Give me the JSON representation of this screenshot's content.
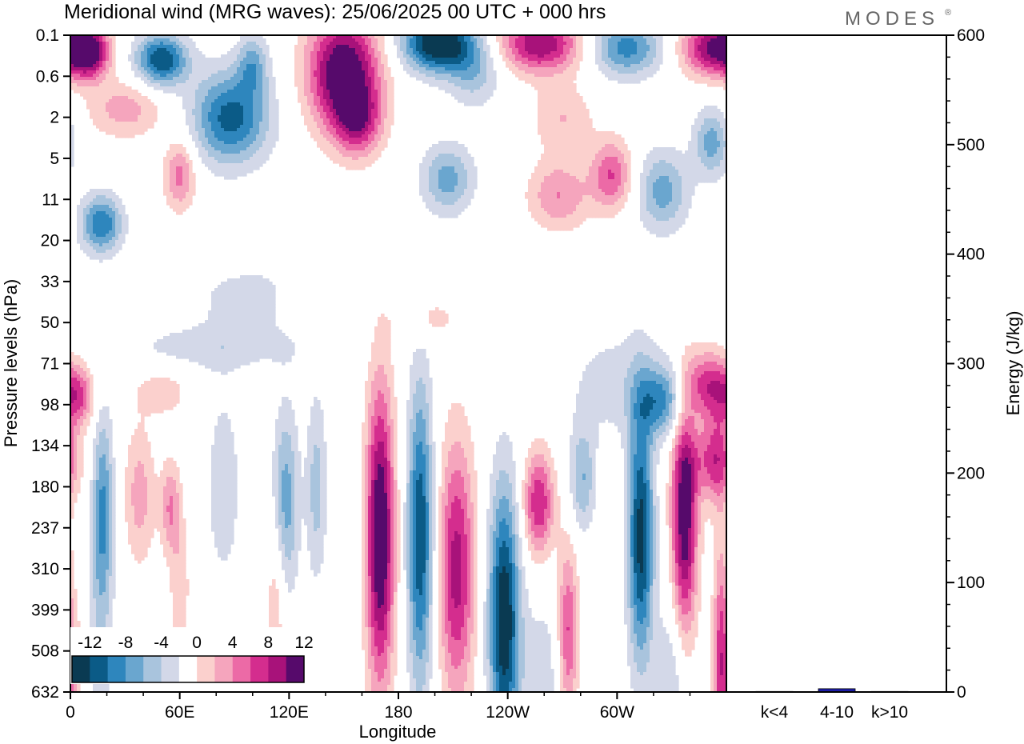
{
  "title": "Meridional wind (MRG waves):  25/06/2025  00 UTC  + 000 hrs",
  "logo": "MODES",
  "logo_mark": "®",
  "colors": {
    "neg": [
      "#0a3a52",
      "#0b5b87",
      "#2e86bd",
      "#6aa6cf",
      "#a9c4dd",
      "#d3d8e8"
    ],
    "pos": [
      "#fbd0cd",
      "#f5a5bd",
      "#ec6aa6",
      "#d42d8e",
      "#a8127a",
      "#560a6b"
    ],
    "zero": "#ffffff",
    "bar": "#1c1ca8"
  },
  "chart_data": [
    {
      "type": "heatmap",
      "title": "Meridional wind (MRG waves):  25/06/2025  00 UTC  + 000 hrs",
      "xlabel": "Longitude",
      "ylabel": "Pressure levels (hPa)",
      "x_ticks": [
        "0",
        "60E",
        "120E",
        "180",
        "120W",
        "60W"
      ],
      "x_tick_positions_deg": [
        0,
        60,
        120,
        180,
        240,
        300
      ],
      "x_range_deg": [
        0,
        360
      ],
      "y_ticks": [
        "0.1",
        "0.6",
        "2",
        "5",
        "11",
        "20",
        "33",
        "50",
        "71",
        "98",
        "134",
        "180",
        "237",
        "310",
        "399",
        "508",
        "632"
      ],
      "colorbar_labels": [
        "-12",
        "-8",
        "-4",
        "0",
        "4",
        "8",
        "12"
      ],
      "colorbar_levels": [
        -14,
        -12,
        -10,
        -8,
        -6,
        -4,
        -2,
        2,
        4,
        6,
        8,
        10,
        12,
        14
      ],
      "features": [
        {
          "lon": 10,
          "lev": 0.4,
          "v": 14,
          "slon": 8,
          "slev": 0.45
        },
        {
          "lon": 50,
          "lev": 0.6,
          "v": -12,
          "slon": 10,
          "slev": 0.45
        },
        {
          "lon": 88,
          "lev": 2.0,
          "v": -11,
          "slon": 15,
          "slev": 0.8
        },
        {
          "lon": 30,
          "lev": 1.8,
          "v": 5,
          "slon": 15,
          "slev": 0.5
        },
        {
          "lon": 60,
          "lev": 3.4,
          "v": 7,
          "slon": 6,
          "slev": 0.6
        },
        {
          "lon": 17,
          "lev": 4.6,
          "v": -10,
          "slon": 8,
          "slev": 0.5
        },
        {
          "lon": 100,
          "lev": 0.7,
          "v": -6,
          "slon": 6,
          "slev": 0.5
        },
        {
          "lon": 150,
          "lev": 0.9,
          "v": 15,
          "slon": 14,
          "slev": 1.0
        },
        {
          "lon": 158,
          "lev": 2.1,
          "v": 8,
          "slon": 9,
          "slev": 0.6
        },
        {
          "lon": 202,
          "lev": 0.2,
          "v": -15,
          "slon": 14,
          "slev": 0.5
        },
        {
          "lon": 222,
          "lev": 0.9,
          "v": -5,
          "slon": 10,
          "slev": 0.6
        },
        {
          "lon": 258,
          "lev": 0.2,
          "v": 12,
          "slon": 16,
          "slev": 0.5
        },
        {
          "lon": 305,
          "lev": 0.3,
          "v": -9,
          "slon": 14,
          "slev": 0.5
        },
        {
          "lon": 352,
          "lev": 0.3,
          "v": 12,
          "slon": 12,
          "slev": 0.5
        },
        {
          "lon": 207,
          "lev": 3.5,
          "v": -7,
          "slon": 10,
          "slev": 0.6
        },
        {
          "lon": 270,
          "lev": 2.0,
          "v": 4,
          "slon": 12,
          "slev": 0.6
        },
        {
          "lon": 297,
          "lev": 3.4,
          "v": 8,
          "slon": 8,
          "slev": 0.6
        },
        {
          "lon": 325,
          "lev": 3.8,
          "v": -7,
          "slon": 10,
          "slev": 0.7
        },
        {
          "lon": 352,
          "lev": 2.6,
          "v": -7,
          "slon": 7,
          "slev": 0.6
        },
        {
          "lon": 268,
          "lev": 3.9,
          "v": 6,
          "slon": 12,
          "slev": 0.6
        },
        {
          "lon": 102,
          "lev": 6.4,
          "v": -3,
          "slon": 25,
          "slev": 0.6
        },
        {
          "lon": 80,
          "lev": 7.6,
          "v": -3,
          "slon": 40,
          "slev": 0.4
        },
        {
          "lon": 130,
          "lev": 6.5,
          "v": 3.5,
          "slon": 10,
          "slev": 0.5
        },
        {
          "lon": 195,
          "lev": 6.9,
          "v": 3,
          "slon": 12,
          "slev": 0.4
        },
        {
          "lon": 5,
          "lev": 8.8,
          "v": 7,
          "slon": 6,
          "slev": 0.5
        },
        {
          "lon": 50,
          "lev": 8.7,
          "v": 3.5,
          "slon": 10,
          "slev": 0.4
        },
        {
          "lon": 325,
          "lev": 8.9,
          "v": -8,
          "slon": 9,
          "slev": 0.6
        },
        {
          "lon": 350,
          "lev": 8.5,
          "v": 9,
          "slon": 9,
          "slev": 0.6
        },
        {
          "lon": 300,
          "lev": 8.5,
          "v": -3,
          "slon": 20,
          "slev": 1.0
        },
        {
          "lon": 352,
          "lev": 10.4,
          "v": 5,
          "slon": 10,
          "slev": 0.6
        },
        {
          "lon": 18,
          "lev": 11.5,
          "v": -7,
          "slon": 4,
          "slev": 1.6
        },
        {
          "lon": 38,
          "lev": 11.2,
          "v": 5,
          "slon": 6,
          "slev": 1.2
        },
        {
          "lon": 55,
          "lev": 11.5,
          "v": 6,
          "slon": 4,
          "slev": 0.8
        },
        {
          "lon": 84,
          "lev": 11.0,
          "v": -3,
          "slon": 8,
          "slev": 2.0
        },
        {
          "lon": 118,
          "lev": 11.4,
          "v": -7.5,
          "slon": 5,
          "slev": 1.6
        },
        {
          "lon": 135,
          "lev": 11.0,
          "v": -5,
          "slon": 4,
          "slev": 1.6
        },
        {
          "lon": 170,
          "lev": 12.2,
          "v": 15,
          "slon": 5.5,
          "slev": 2.6
        },
        {
          "lon": 192,
          "lev": 12.2,
          "v": -12,
          "slon": 5,
          "slev": 2.6
        },
        {
          "lon": 212,
          "lev": 13.0,
          "v": 11,
          "slon": 7,
          "slev": 2.2
        },
        {
          "lon": 238,
          "lev": 14.2,
          "v": -14,
          "slon": 6,
          "slev": 2.3
        },
        {
          "lon": 257,
          "lev": 11.4,
          "v": 10,
          "slon": 6,
          "slev": 0.9
        },
        {
          "lon": 273,
          "lev": 14.6,
          "v": 9,
          "slon": 4,
          "slev": 1.5
        },
        {
          "lon": 281,
          "lev": 10.8,
          "v": -6,
          "slon": 5,
          "slev": 0.9
        },
        {
          "lon": 313,
          "lev": 12.2,
          "v": -13,
          "slon": 5,
          "slev": 2.2
        },
        {
          "lon": 337,
          "lev": 11.8,
          "v": 14,
          "slon": 5,
          "slev": 2.0
        },
        {
          "lon": 355,
          "lev": 10.2,
          "v": 5,
          "slon": 6,
          "slev": 1.0
        },
        {
          "lon": 16,
          "lev": 14.3,
          "v": -3.5,
          "slon": 5,
          "slev": 2.8
        },
        {
          "lon": 60,
          "lev": 13.5,
          "v": 3.5,
          "slon": 4,
          "slev": 1.2
        },
        {
          "lon": 113,
          "lev": 13.6,
          "v": 4,
          "slon": 4,
          "slev": 1.6
        },
        {
          "lon": 260,
          "lev": 15.6,
          "v": -3,
          "slon": 10,
          "slev": 1.5
        },
        {
          "lon": 330,
          "lev": 15.6,
          "v": -4,
          "slon": 6,
          "slev": 1.4
        },
        {
          "lon": 357,
          "lev": 15.2,
          "v": 8,
          "slon": 3,
          "slev": 2.0
        },
        {
          "lon": 2,
          "lev": 15.6,
          "v": 3,
          "slon": 6,
          "slev": 1.5
        }
      ]
    },
    {
      "type": "bar",
      "categories": [
        "k<4",
        "4-10",
        "k>10"
      ],
      "values": [
        0.5,
        3,
        0.5
      ],
      "ylabel": "Energy (J/kg)",
      "ylim": [
        0,
        600
      ],
      "y_ticks": [
        "0",
        "100",
        "200",
        "300",
        "400",
        "500",
        "600"
      ]
    }
  ]
}
